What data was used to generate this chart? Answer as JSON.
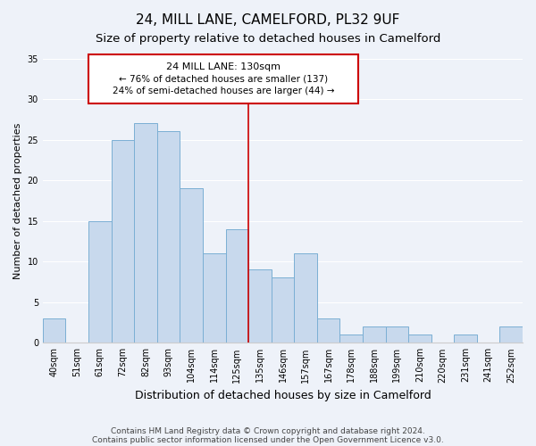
{
  "title": "24, MILL LANE, CAMELFORD, PL32 9UF",
  "subtitle": "Size of property relative to detached houses in Camelford",
  "xlabel": "Distribution of detached houses by size in Camelford",
  "ylabel": "Number of detached properties",
  "bar_labels": [
    "40sqm",
    "51sqm",
    "61sqm",
    "72sqm",
    "82sqm",
    "93sqm",
    "104sqm",
    "114sqm",
    "125sqm",
    "135sqm",
    "146sqm",
    "157sqm",
    "167sqm",
    "178sqm",
    "188sqm",
    "199sqm",
    "210sqm",
    "220sqm",
    "231sqm",
    "241sqm",
    "252sqm"
  ],
  "bar_values": [
    3,
    0,
    15,
    25,
    27,
    26,
    19,
    11,
    14,
    9,
    8,
    11,
    3,
    1,
    2,
    2,
    1,
    0,
    1,
    0,
    2
  ],
  "bar_color": "#c8d9ed",
  "bar_edge_color": "#7bafd4",
  "ylim": [
    0,
    35
  ],
  "yticks": [
    0,
    5,
    10,
    15,
    20,
    25,
    30,
    35
  ],
  "vline_index": 8,
  "vline_color": "#cc0000",
  "annotation_title": "24 MILL LANE: 130sqm",
  "annotation_line1": "← 76% of detached houses are smaller (137)",
  "annotation_line2": "24% of semi-detached houses are larger (44) →",
  "annotation_box_color": "#ffffff",
  "annotation_box_edge_color": "#cc0000",
  "bg_color": "#eef2f9",
  "footer_line1": "Contains HM Land Registry data © Crown copyright and database right 2024.",
  "footer_line2": "Contains public sector information licensed under the Open Government Licence v3.0.",
  "title_fontsize": 11,
  "subtitle_fontsize": 9.5,
  "xlabel_fontsize": 9,
  "ylabel_fontsize": 8,
  "tick_fontsize": 7,
  "footer_fontsize": 6.5,
  "ann_title_fontsize": 8,
  "ann_text_fontsize": 7.5
}
